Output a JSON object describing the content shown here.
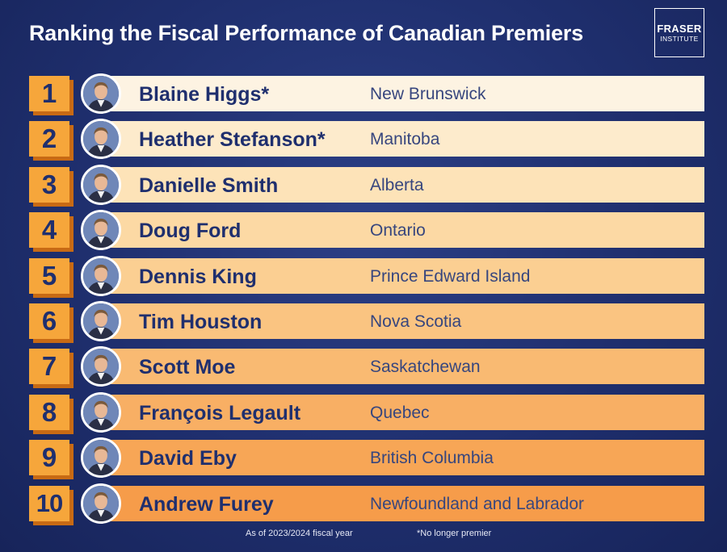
{
  "title": "Ranking the Fiscal Performance of Canadian Premiers",
  "logo": {
    "main": "FRASER",
    "sub": "INSTITUTE"
  },
  "rows": [
    {
      "rank": "1",
      "name": "Blaine Higgs*",
      "province": "New Brunswick",
      "bar_color": "#fdf3e2",
      "portrait": "premier-portrait-icon"
    },
    {
      "rank": "2",
      "name": "Heather Stefanson*",
      "province": "Manitoba",
      "bar_color": "#fdebcc",
      "portrait": "premier-portrait-icon"
    },
    {
      "rank": "3",
      "name": "Danielle Smith",
      "province": "Alberta",
      "bar_color": "#fde3b8",
      "portrait": "premier-portrait-icon"
    },
    {
      "rank": "4",
      "name": "Doug Ford",
      "province": "Ontario",
      "bar_color": "#fcd9a4",
      "portrait": "premier-portrait-icon"
    },
    {
      "rank": "5",
      "name": "Dennis King",
      "province": "Prince Edward Island",
      "bar_color": "#fbcf92",
      "portrait": "premier-portrait-icon"
    },
    {
      "rank": "6",
      "name": "Tim Houston",
      "province": "Nova Scotia",
      "bar_color": "#fac481",
      "portrait": "premier-portrait-icon"
    },
    {
      "rank": "7",
      "name": "Scott Moe",
      "province": "Saskatchewan",
      "bar_color": "#f9ba72",
      "portrait": "premier-portrait-icon"
    },
    {
      "rank": "8",
      "name": "François Legault",
      "province": "Quebec",
      "bar_color": "#f8af64",
      "portrait": "premier-portrait-icon"
    },
    {
      "rank": "9",
      "name": "David Eby",
      "province": "British Columbia",
      "bar_color": "#f7a656",
      "portrait": "premier-portrait-icon"
    },
    {
      "rank": "10",
      "name": "Andrew Furey",
      "province": "Newfoundland and Labrador",
      "bar_color": "#f69c4a",
      "portrait": "premier-portrait-icon"
    }
  ],
  "footer": {
    "note_left": "As of 2023/2024 fiscal year",
    "note_right": "*No longer premier"
  }
}
